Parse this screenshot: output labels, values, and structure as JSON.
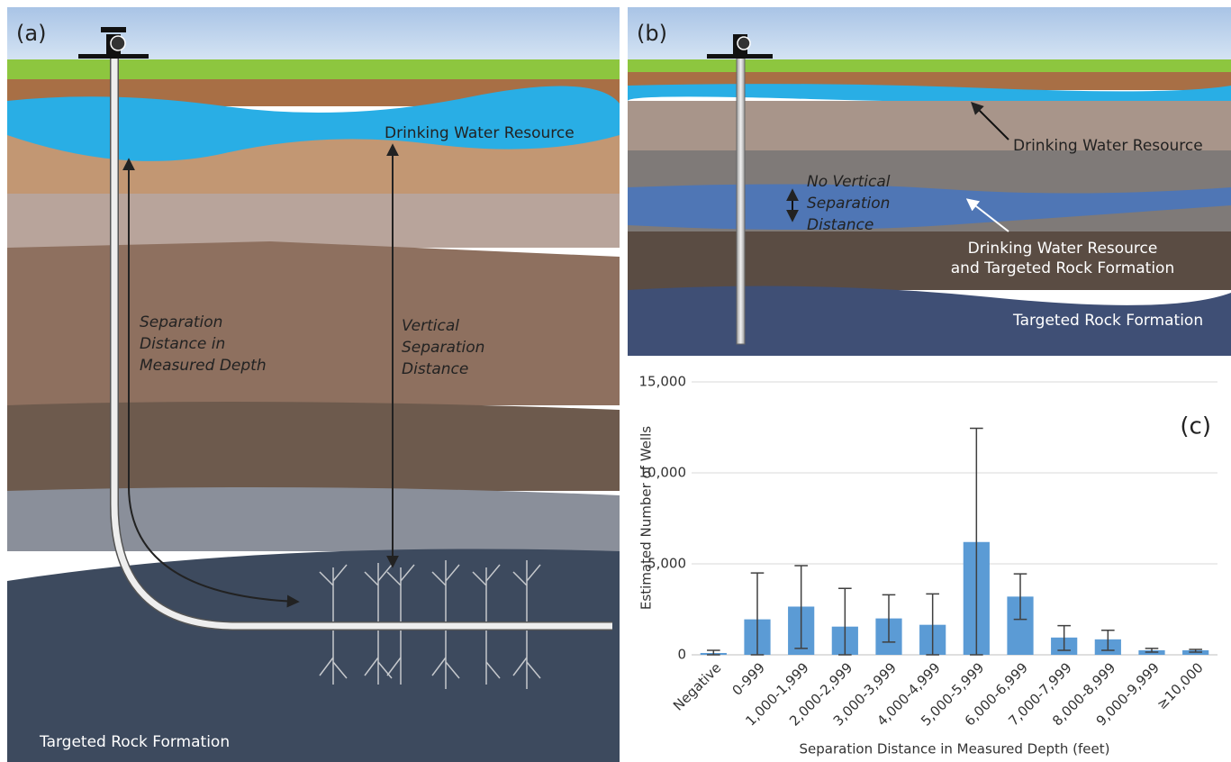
{
  "panel_a": {
    "label": "(a)",
    "water": "Drinking Water Resource",
    "measured_depth": [
      "Separation",
      "Distance in",
      "Measured Depth"
    ],
    "vertical": [
      "Vertical",
      "Separation",
      "Distance"
    ],
    "target": "Targeted Rock Formation"
  },
  "panel_b": {
    "label": "(b)",
    "water": "Drinking Water Resource",
    "no_vertical": [
      "No Vertical",
      "Separation",
      "Distance"
    ],
    "both": [
      "Drinking Water Resource",
      "and Targeted Rock Formation"
    ],
    "target": "Targeted Rock Formation"
  },
  "chart_data": {
    "type": "bar",
    "label": "(c)",
    "y_label": "Estimated Number of Wells",
    "x_label": "Separation Distance in Measured Depth (feet)",
    "categories": [
      "Negative",
      "0-999",
      "1,000-1,999",
      "2,000-2,999",
      "3,000-3,999",
      "4,000-4,999",
      "5,000-5,999",
      "6,000-6,999",
      "7,000-7,999",
      "8,000-8,999",
      "9,000-9,999",
      "≥10,000"
    ],
    "values": [
      100,
      1950,
      2650,
      1550,
      2000,
      1650,
      6200,
      3200,
      950,
      850,
      250,
      250
    ],
    "error_low": [
      0,
      0,
      350,
      0,
      700,
      0,
      0,
      1950,
      250,
      250,
      150,
      150
    ],
    "error_high": [
      250,
      4500,
      4900,
      3650,
      3300,
      3350,
      12450,
      4450,
      1600,
      1350,
      350,
      300
    ],
    "color": "#5b9bd5",
    "ylim": [
      0,
      15000
    ],
    "yticks": [
      0,
      {
        "value": 5000,
        "label": "5,000"
      },
      {
        "value": 10000,
        "label": "10,000"
      },
      {
        "value": 15000,
        "label": "15,000"
      }
    ],
    "grid": true
  }
}
